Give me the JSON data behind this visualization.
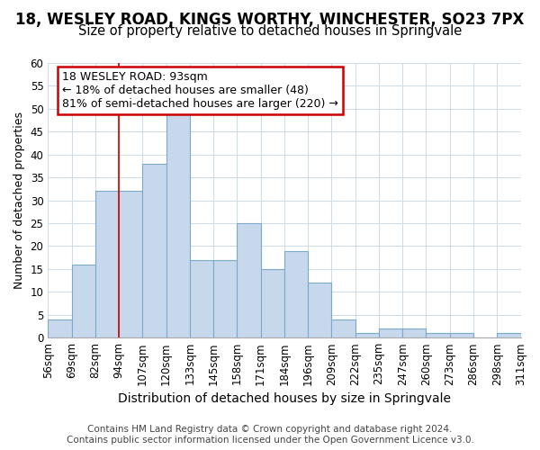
{
  "title1": "18, WESLEY ROAD, KINGS WORTHY, WINCHESTER, SO23 7PX",
  "title2": "Size of property relative to detached houses in Springvale",
  "xlabel": "Distribution of detached houses by size in Springvale",
  "ylabel": "Number of detached properties",
  "categories": [
    "56sqm",
    "69sqm",
    "82sqm",
    "94sqm",
    "107sqm",
    "120sqm",
    "133sqm",
    "145sqm",
    "158sqm",
    "171sqm",
    "184sqm",
    "196sqm",
    "209sqm",
    "222sqm",
    "235sqm",
    "247sqm",
    "260sqm",
    "273sqm",
    "286sqm",
    "298sqm",
    "311sqm"
  ],
  "bar_values": [
    4,
    16,
    32,
    32,
    38,
    49,
    17,
    17,
    25,
    15,
    19,
    12,
    4,
    1,
    2,
    2,
    1,
    1,
    0,
    1
  ],
  "bar_color": "#c8d8ec",
  "bar_edge_color": "#7aaac8",
  "vline_color": "#cc0000",
  "vline_x_index": 3,
  "annotation_text_line1": "18 WESLEY ROAD: 93sqm",
  "annotation_text_line2": "← 18% of detached houses are smaller (48)",
  "annotation_text_line3": "81% of semi-detached houses are larger (220) →",
  "annotation_box_color": "#ffffff",
  "annotation_edge_color": "#cc0000",
  "footer1": "Contains HM Land Registry data © Crown copyright and database right 2024.",
  "footer2": "Contains public sector information licensed under the Open Government Licence v3.0.",
  "bg_color": "#ffffff",
  "plot_bg_color": "#ffffff",
  "grid_color": "#d0dce8",
  "ylim": [
    0,
    60
  ],
  "yticks": [
    0,
    5,
    10,
    15,
    20,
    25,
    30,
    35,
    40,
    45,
    50,
    55,
    60
  ],
  "title1_fontsize": 12,
  "title2_fontsize": 10.5,
  "xlabel_fontsize": 10,
  "ylabel_fontsize": 9,
  "tick_fontsize": 8.5,
  "annotation_fontsize": 9,
  "footer_fontsize": 7.5
}
